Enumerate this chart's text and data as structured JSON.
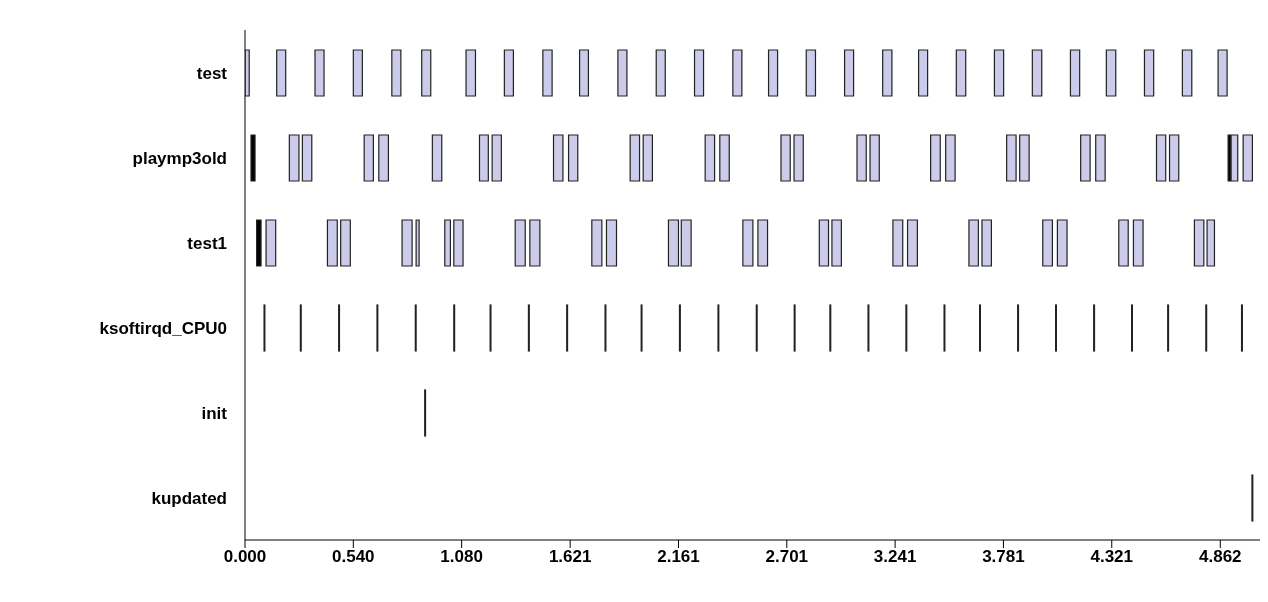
{
  "chart_data": {
    "type": "bar",
    "orientation": "horizontal",
    "categories": [
      "test",
      "playmp3old",
      "test1",
      "ksoftirqd_CPU0",
      "init",
      "kupdated"
    ],
    "xlim": [
      0,
      5.06
    ],
    "xticks": [
      {
        "value": 0,
        "label": "0.000"
      },
      {
        "value": 0.54,
        "label": "0.540"
      },
      {
        "value": 1.08,
        "label": "1.080"
      },
      {
        "value": 1.621,
        "label": "1.621"
      },
      {
        "value": 2.161,
        "label": "2.161"
      },
      {
        "value": 2.701,
        "label": "2.701"
      },
      {
        "value": 3.241,
        "label": "3.241"
      },
      {
        "value": 3.781,
        "label": "3.781"
      },
      {
        "value": 4.321,
        "label": "4.321"
      },
      {
        "value": 4.862,
        "label": "4.862"
      }
    ],
    "series": [
      {
        "base": [
          0,
          0.03,
          0.058,
          0.095,
          0.896,
          5.02
        ],
        "values": [
          0.021,
          0.02,
          0.022,
          0.004,
          0.004,
          0.004
        ],
        "colors": [
          "#ccccea",
          "#000000",
          "#000000",
          "#000000",
          "#000000",
          "#000000"
        ]
      },
      {
        "base": [
          0.158,
          0.221,
          0.105,
          0.276,
          null,
          null
        ],
        "values": [
          0.045,
          0.048,
          0.048,
          0.004,
          null,
          null
        ],
        "colors": [
          "#ccccea",
          "#ccccea",
          "#ccccea",
          "#000000",
          null,
          null
        ]
      },
      {
        "base": [
          0.349,
          0.286,
          0.411,
          0.467,
          null,
          null
        ],
        "values": [
          0.045,
          0.047,
          0.049,
          0.004,
          null,
          null
        ],
        "colors": [
          "#ccccea",
          "#ccccea",
          "#ccccea",
          "#000000",
          null,
          null
        ]
      },
      {
        "base": [
          0.54,
          0.594,
          0.477,
          0.658,
          null,
          null
        ],
        "values": [
          0.045,
          0.046,
          0.048,
          0.004,
          null,
          null
        ],
        "colors": [
          "#ccccea",
          "#ccccea",
          "#ccccea",
          "#000000",
          null,
          null
        ]
      },
      {
        "base": [
          0.732,
          0.667,
          0.783,
          0.849,
          null,
          null
        ],
        "values": [
          0.045,
          0.048,
          0.05,
          0.004,
          null,
          null
        ],
        "colors": [
          "#ccccea",
          "#ccccea",
          "#ccccea",
          "#000000",
          null,
          null
        ]
      },
      {
        "base": [
          0.881,
          0.934,
          0.853,
          1.041,
          null,
          null
        ],
        "values": [
          0.045,
          0.047,
          0.015,
          0.004,
          null,
          null
        ],
        "colors": [
          "#ccccea",
          "#ccccea",
          "#ccccea",
          "#000000",
          null,
          null
        ]
      },
      {
        "base": [
          1.102,
          1.169,
          0.996,
          1.222,
          null,
          null
        ],
        "values": [
          0.047,
          0.044,
          0.028,
          0.004,
          null,
          null
        ],
        "colors": [
          "#ccccea",
          "#ccccea",
          "#ccccea",
          "#000000",
          null,
          null
        ]
      },
      {
        "base": [
          1.293,
          1.232,
          1.041,
          1.413,
          null,
          null
        ],
        "values": [
          0.045,
          0.046,
          0.046,
          0.004,
          null,
          null
        ],
        "colors": [
          "#ccccea",
          "#ccccea",
          "#ccccea",
          "#000000",
          null,
          null
        ]
      },
      {
        "base": [
          1.485,
          1.538,
          1.347,
          1.604,
          null,
          null
        ],
        "values": [
          0.046,
          0.047,
          0.05,
          0.004,
          null,
          null
        ],
        "colors": [
          "#ccccea",
          "#ccccea",
          "#ccccea",
          "#000000",
          null,
          null
        ]
      },
      {
        "base": [
          1.668,
          1.613,
          1.42,
          1.795,
          null,
          null
        ],
        "values": [
          0.044,
          0.046,
          0.05,
          0.004,
          null,
          null
        ],
        "colors": [
          "#ccccea",
          "#ccccea",
          "#ccccea",
          "#000000",
          null,
          null
        ]
      },
      {
        "base": [
          1.859,
          1.92,
          1.729,
          1.975,
          null,
          null
        ],
        "values": [
          0.045,
          0.047,
          0.05,
          0.004,
          null,
          null
        ],
        "colors": [
          "#ccccea",
          "#ccccea",
          "#ccccea",
          "#000000",
          null,
          null
        ]
      },
      {
        "base": [
          2.05,
          1.985,
          1.802,
          2.166,
          null,
          null
        ],
        "values": [
          0.045,
          0.046,
          0.05,
          0.004,
          null,
          null
        ],
        "colors": [
          "#ccccea",
          "#ccccea",
          "#ccccea",
          "#000000",
          null,
          null
        ]
      },
      {
        "base": [
          2.241,
          2.294,
          2.111,
          2.358,
          null,
          null
        ],
        "values": [
          0.045,
          0.047,
          0.05,
          0.004,
          null,
          null
        ],
        "colors": [
          "#ccccea",
          "#ccccea",
          "#ccccea",
          "#000000",
          null,
          null
        ]
      },
      {
        "base": [
          2.432,
          2.367,
          2.175,
          2.549,
          null,
          null
        ],
        "values": [
          0.045,
          0.047,
          0.049,
          0.004,
          null,
          null
        ],
        "colors": [
          "#ccccea",
          "#ccccea",
          "#ccccea",
          "#000000",
          null,
          null
        ]
      },
      {
        "base": [
          2.61,
          2.672,
          2.482,
          2.738,
          null,
          null
        ],
        "values": [
          0.045,
          0.046,
          0.05,
          0.004,
          null,
          null
        ],
        "colors": [
          "#ccccea",
          "#ccccea",
          "#ccccea",
          "#000000",
          null,
          null
        ]
      },
      {
        "base": [
          2.798,
          2.737,
          2.557,
          2.916,
          null,
          null
        ],
        "values": [
          0.046,
          0.046,
          0.048,
          0.004,
          null,
          null
        ],
        "colors": [
          "#ccccea",
          "#ccccea",
          "#ccccea",
          "#000000",
          null,
          null
        ]
      },
      {
        "base": [
          2.989,
          3.051,
          2.863,
          3.106,
          null,
          null
        ],
        "values": [
          0.045,
          0.046,
          0.046,
          0.004,
          null,
          null
        ],
        "colors": [
          "#ccccea",
          "#ccccea",
          "#ccccea",
          "#000000",
          null,
          null
        ]
      },
      {
        "base": [
          3.179,
          3.116,
          2.926,
          3.295,
          null,
          null
        ],
        "values": [
          0.046,
          0.046,
          0.047,
          0.004,
          null,
          null
        ],
        "colors": [
          "#ccccea",
          "#ccccea",
          "#ccccea",
          "#000000",
          null,
          null
        ]
      },
      {
        "base": [
          3.358,
          3.418,
          3.23,
          3.485,
          null,
          null
        ],
        "values": [
          0.045,
          0.048,
          0.049,
          0.004,
          null,
          null
        ],
        "colors": [
          "#ccccea",
          "#ccccea",
          "#ccccea",
          "#000000",
          null,
          null
        ]
      },
      {
        "base": [
          3.546,
          3.493,
          3.303,
          3.662,
          null,
          null
        ],
        "values": [
          0.047,
          0.047,
          0.049,
          0.004,
          null,
          null
        ],
        "colors": [
          "#ccccea",
          "#ccccea",
          "#ccccea",
          "#000000",
          null,
          null
        ]
      },
      {
        "base": [
          3.736,
          3.797,
          3.609,
          3.852,
          null,
          null
        ],
        "values": [
          0.046,
          0.047,
          0.047,
          0.004,
          null,
          null
        ],
        "colors": [
          "#ccccea",
          "#ccccea",
          "#ccccea",
          "#000000",
          null,
          null
        ]
      },
      {
        "base": [
          3.925,
          3.862,
          3.674,
          4.041,
          null,
          null
        ],
        "values": [
          0.047,
          0.047,
          0.047,
          0.004,
          null,
          null
        ],
        "colors": [
          "#ccccea",
          "#ccccea",
          "#ccccea",
          "#000000",
          null,
          null
        ]
      },
      {
        "base": [
          4.115,
          4.166,
          3.977,
          4.231,
          null,
          null
        ],
        "values": [
          0.046,
          0.047,
          0.048,
          0.004,
          null,
          null
        ],
        "colors": [
          "#ccccea",
          "#ccccea",
          "#ccccea",
          "#000000",
          null,
          null
        ]
      },
      {
        "base": [
          4.294,
          4.241,
          4.05,
          4.42,
          null,
          null
        ],
        "values": [
          0.047,
          0.047,
          0.048,
          0.004,
          null,
          null
        ],
        "colors": [
          "#ccccea",
          "#ccccea",
          "#ccccea",
          "#000000",
          null,
          null
        ]
      },
      {
        "base": [
          4.484,
          4.544,
          4.356,
          4.6,
          null,
          null
        ],
        "values": [
          0.046,
          0.046,
          0.047,
          0.004,
          null,
          null
        ],
        "colors": [
          "#ccccea",
          "#ccccea",
          "#ccccea",
          "#000000",
          null,
          null
        ]
      },
      {
        "base": [
          4.673,
          4.609,
          4.429,
          4.79,
          null,
          null
        ],
        "values": [
          0.047,
          0.046,
          0.048,
          0.004,
          null,
          null
        ],
        "colors": [
          "#ccccea",
          "#ccccea",
          "#ccccea",
          "#000000",
          null,
          null
        ]
      },
      {
        "base": [
          4.851,
          4.901,
          4.733,
          4.968,
          null,
          null
        ],
        "values": [
          0.045,
          0.012,
          0.047,
          0.004,
          null,
          null
        ],
        "colors": [
          "#ccccea",
          "#000000",
          "#ccccea",
          "#000000",
          null,
          null
        ]
      },
      {
        "base": [
          null,
          4.916,
          4.796,
          null,
          null,
          null
        ],
        "values": [
          null,
          0.033,
          0.037,
          null,
          null,
          null
        ],
        "colors": [
          null,
          "#ccccea",
          "#ccccea",
          null,
          null,
          null
        ]
      },
      {
        "base": [
          null,
          4.976,
          null,
          null,
          null,
          null
        ],
        "values": [
          null,
          0.046,
          null,
          null,
          null,
          null
        ],
        "colors": [
          null,
          "#ccccea",
          null,
          null,
          null,
          null
        ]
      }
    ]
  }
}
